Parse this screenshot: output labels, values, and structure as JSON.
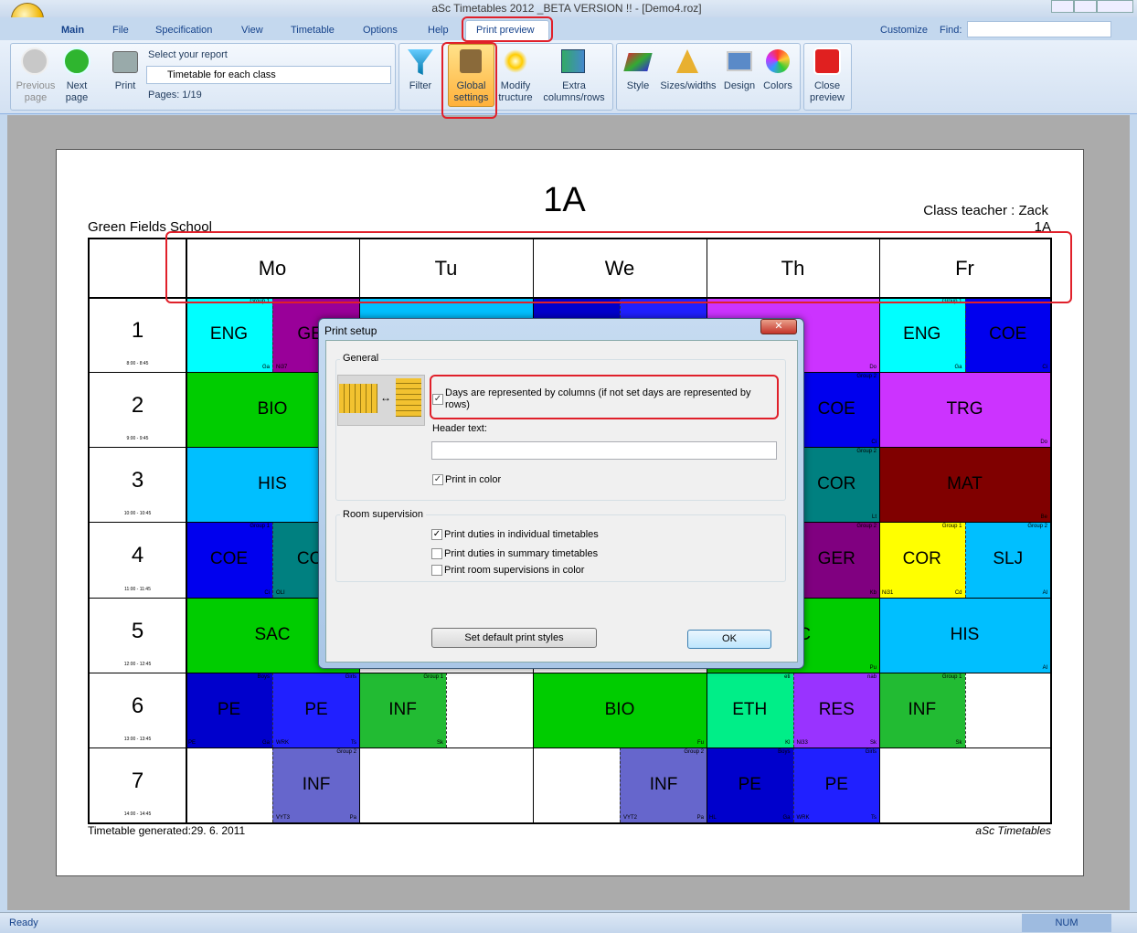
{
  "window": {
    "title": "aSc Timetables 2012 _BETA VERSION !! - [Demo4.roz]"
  },
  "menu": {
    "tabs": [
      "Main",
      "File",
      "Specification",
      "View",
      "Timetable",
      "Options",
      "Help",
      "Print preview"
    ],
    "customize": "Customize",
    "find": "Find:"
  },
  "ribbon": {
    "previous_page": "Previous page",
    "next_page": "Next page",
    "print": "Print",
    "select_report": "Select your report",
    "report": "Timetable for each class",
    "pages": "Pages: 1/19",
    "filter": "Filter",
    "global_settings": "Global settings",
    "modify_structure": "Modify tructure",
    "extra": "Extra columns/rows",
    "style": "Style",
    "sizes": "Sizes/widths",
    "design": "Design",
    "colors": "Colors",
    "close_preview": "Close preview"
  },
  "timetable": {
    "title": "1A",
    "school": "Green Fields School",
    "teacher": "Class teacher : Zack",
    "class": "1A",
    "days": [
      "Mo",
      "Tu",
      "We",
      "Th",
      "Fr"
    ],
    "footer_left": "Timetable generated:29. 6. 2011",
    "footer_right": "aSc Timetables",
    "rows": [
      {
        "number": 1,
        "time": "8:00 - 8:45",
        "days": [
          [
            {
              "subject": "ENG",
              "color": "#00ffff",
              "group": "Group 1",
              "right": "Ga"
            },
            {
              "subject": "GER",
              "color": "#990099",
              "left": "Ni37"
            }
          ],
          [
            {
              "color": "#00c0ff"
            }
          ],
          [
            {
              "color": "#0000cc"
            },
            {
              "color": "#2020ff"
            }
          ],
          [
            {
              "color": "#cc33ff",
              "right": "Do"
            }
          ],
          [
            {
              "subject": "ENG",
              "color": "#00ffff",
              "group": "Group 1",
              "right": "Ga"
            },
            {
              "subject": "COE",
              "color": "#0000ee",
              "right": "Ci"
            }
          ]
        ]
      },
      {
        "number": 2,
        "time": "9:00 - 9:45",
        "days": [
          [
            {
              "subject": "BIO",
              "color": "#00cc00"
            }
          ],
          [
            {
              "color": "#ffffff"
            }
          ],
          [
            {
              "color": "#ffffff"
            }
          ],
          [
            {
              "color": "#ffffff"
            },
            {
              "subject": "COE",
              "color": "#0000ee",
              "group": "Group 2",
              "right": "Ci"
            }
          ],
          [
            {
              "subject": "TRG",
              "color": "#cc33ff",
              "right": "Do"
            }
          ]
        ]
      },
      {
        "number": 3,
        "time": "10:00 - 10:45",
        "days": [
          [
            {
              "subject": "HIS",
              "color": "#00bfff"
            }
          ],
          [
            {
              "color": "#ffffff"
            }
          ],
          [
            {
              "color": "#ffffff"
            }
          ],
          [
            {
              "color": "#ffffff"
            },
            {
              "subject": "COR",
              "color": "#008080",
              "group": "Group 2",
              "right": "Lt"
            }
          ],
          [
            {
              "subject": "MAT",
              "color": "#800000",
              "right": "Be"
            }
          ]
        ]
      },
      {
        "number": 4,
        "time": "11:00 - 11:45",
        "days": [
          [
            {
              "subject": "COE",
              "color": "#0000ee",
              "group": "Group 1",
              "right": "Ci"
            },
            {
              "subject": "COR",
              "color": "#008080",
              "left": "OLI"
            }
          ],
          [
            {
              "color": "#ffffff"
            }
          ],
          [
            {
              "color": "#ffffff"
            }
          ],
          [
            {
              "color": "#ffffff"
            },
            {
              "subject": "GER",
              "color": "#800080",
              "group": "Group 2",
              "right": "Kb"
            }
          ],
          [
            {
              "subject": "COR",
              "color": "#ffff00",
              "group": "Group 1",
              "left": "Ni31",
              "right": "Cd"
            },
            {
              "subject": "SLJ",
              "color": "#00bfff",
              "group": "Group 2",
              "right": "Al"
            }
          ]
        ]
      },
      {
        "number": 5,
        "time": "12:00 - 12:45",
        "days": [
          [
            {
              "subject": "SAC",
              "color": "#00cc00"
            }
          ],
          [
            {
              "color": "#ffffff"
            }
          ],
          [
            {
              "color": "#ffffff"
            }
          ],
          [
            {
              "subject": "SAC",
              "color": "#00cc00",
              "right": "Pu"
            }
          ],
          [
            {
              "subject": "HIS",
              "color": "#00bfff",
              "right": "Al"
            }
          ]
        ]
      },
      {
        "number": 6,
        "time": "13:00 - 13:45",
        "days": [
          [
            {
              "subject": "PE",
              "color": "#0000cc",
              "group": "Boys",
              "left": "PE",
              "right": "Ga"
            },
            {
              "subject": "PE",
              "color": "#2020ff",
              "group": "Girls",
              "left": "WRK",
              "right": "Ts"
            }
          ],
          [
            {
              "subject": "INF",
              "color": "#22bb33",
              "group": "Group 1",
              "right": "Sk"
            },
            {
              "color": "#ffffff"
            }
          ],
          [
            {
              "subject": "BIO",
              "color": "#00cc00",
              "right": "Fu"
            }
          ],
          [
            {
              "subject": "ETH",
              "color": "#00ee88",
              "group": "eti",
              "right": "Kl"
            },
            {
              "subject": "RES",
              "color": "#9933ff",
              "group": "nab",
              "left": "Ni33",
              "right": "Sk"
            }
          ],
          [
            {
              "subject": "INF",
              "color": "#22bb33",
              "group": "Group 1",
              "right": "Sk"
            },
            {
              "color": "#ffffff"
            }
          ]
        ]
      },
      {
        "number": 7,
        "time": "14:00 - 14:45",
        "days": [
          [
            {
              "color": "#ffffff"
            },
            {
              "subject": "INF",
              "color": "#6666cc",
              "group": "Group 2",
              "left": "VYT3",
              "right": "Pa"
            }
          ],
          [
            {
              "color": "#ffffff"
            }
          ],
          [
            {
              "color": "#ffffff"
            },
            {
              "subject": "INF",
              "color": "#6666cc",
              "group": "Group 2",
              "left": "VYT2",
              "right": "Pa"
            }
          ],
          [
            {
              "subject": "PE",
              "color": "#0000cc",
              "group": "Boys",
              "left": "HL",
              "right": "Ga"
            },
            {
              "subject": "PE",
              "color": "#2020ff",
              "group": "Girls",
              "left": "WRK",
              "right": "Ts"
            }
          ],
          [
            {
              "color": "#ffffff"
            }
          ]
        ]
      }
    ]
  },
  "dialog": {
    "title": "Print setup",
    "general": "General",
    "days_columns": {
      "label": "Days are represented by columns (if not set days are represented by rows)",
      "checked": true
    },
    "header_text": "Header text:",
    "print_color": {
      "label": "Print in color",
      "checked": true
    },
    "room_supervision": "Room supervision",
    "options": [
      {
        "label": "Print duties in individual timetables",
        "checked": true
      },
      {
        "label": "Print duties in summary timetables",
        "checked": false
      },
      {
        "label": "Print room supervisions in color",
        "checked": false
      }
    ],
    "default_button": "Set default print styles",
    "ok": "OK"
  },
  "status": {
    "left": "Ready",
    "num": "NUM"
  }
}
